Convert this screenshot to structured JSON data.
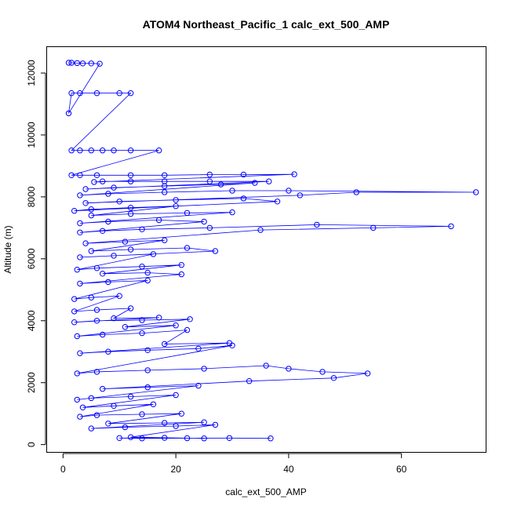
{
  "chart_data": {
    "type": "scatter",
    "title": "ATOM4 Northeast_Pacific_1 calc_ext_500_AMP",
    "xlabel": "calc_ext_500_AMP",
    "ylabel": "Altitude (m)",
    "xlim": [
      -2.9,
      75
    ],
    "ylim": [
      -250,
      12850
    ],
    "x_ticks": [
      0,
      20,
      40,
      60
    ],
    "x_tick_labels": [
      "0",
      "20",
      "40",
      "60"
    ],
    "y_ticks": [
      0,
      2000,
      4000,
      6000,
      8000,
      10000,
      12000
    ],
    "y_tick_labels": [
      "0",
      "2000",
      "4000",
      "6000",
      "8000",
      "10000",
      "12000"
    ],
    "grid": false,
    "legend": "none",
    "point_style": "open-circle-with-connecting-line",
    "color": "#0000ff",
    "series": [
      {
        "points": [
          [
            36.8,
            200
          ],
          [
            29.5,
            210
          ],
          [
            22.0,
            205
          ],
          [
            14.0,
            200
          ],
          [
            10.0,
            210
          ],
          [
            18.0,
            220
          ],
          [
            25.0,
            200
          ],
          [
            12.0,
            240
          ],
          [
            27.0,
            640
          ],
          [
            20.0,
            600
          ],
          [
            11.0,
            560
          ],
          [
            5.0,
            520
          ],
          [
            25.0,
            720
          ],
          [
            18.0,
            700
          ],
          [
            8.0,
            680
          ],
          [
            21.0,
            1000
          ],
          [
            14.0,
            980
          ],
          [
            6.0,
            950
          ],
          [
            3.0,
            900
          ],
          [
            16.0,
            1300
          ],
          [
            9.0,
            1250
          ],
          [
            3.5,
            1200
          ],
          [
            20.0,
            1600
          ],
          [
            12.0,
            1550
          ],
          [
            5.0,
            1500
          ],
          [
            2.5,
            1450
          ],
          [
            24.0,
            1900
          ],
          [
            15.0,
            1850
          ],
          [
            7.0,
            1800
          ],
          [
            33.0,
            2050
          ],
          [
            48.0,
            2150
          ],
          [
            54.0,
            2300
          ],
          [
            46.0,
            2350
          ],
          [
            40.0,
            2450
          ],
          [
            36.0,
            2550
          ],
          [
            25.0,
            2450
          ],
          [
            15.0,
            2400
          ],
          [
            6.0,
            2350
          ],
          [
            2.5,
            2300
          ],
          [
            30.0,
            3200
          ],
          [
            24.0,
            3100
          ],
          [
            15.0,
            3050
          ],
          [
            8.0,
            3000
          ],
          [
            3.0,
            2950
          ],
          [
            29.5,
            3280
          ],
          [
            18.0,
            3250
          ],
          [
            22.0,
            3700
          ],
          [
            14.0,
            3600
          ],
          [
            7.0,
            3550
          ],
          [
            2.5,
            3500
          ],
          [
            20.0,
            3850
          ],
          [
            11.0,
            3800
          ],
          [
            22.5,
            4050
          ],
          [
            14.0,
            4020
          ],
          [
            6.0,
            4000
          ],
          [
            2.0,
            3950
          ],
          [
            17.0,
            4100
          ],
          [
            9.0,
            4080
          ],
          [
            12.0,
            4400
          ],
          [
            6.0,
            4350
          ],
          [
            2.0,
            4300
          ],
          [
            10.0,
            4800
          ],
          [
            5.0,
            4750
          ],
          [
            2.0,
            4700
          ],
          [
            15.0,
            5300
          ],
          [
            8.0,
            5250
          ],
          [
            3.0,
            5200
          ],
          [
            21.0,
            5500
          ],
          [
            15.0,
            5550
          ],
          [
            7.0,
            5520
          ],
          [
            21.0,
            5800
          ],
          [
            14.0,
            5750
          ],
          [
            6.0,
            5700
          ],
          [
            2.5,
            5650
          ],
          [
            16.0,
            6150
          ],
          [
            9.0,
            6100
          ],
          [
            3.0,
            6050
          ],
          [
            27.0,
            6250
          ],
          [
            22.0,
            6350
          ],
          [
            12.0,
            6300
          ],
          [
            5.0,
            6250
          ],
          [
            18.0,
            6600
          ],
          [
            11.0,
            6550
          ],
          [
            4.0,
            6500
          ],
          [
            35.0,
            6930
          ],
          [
            55.0,
            7000
          ],
          [
            68.8,
            7050
          ],
          [
            45.0,
            7100
          ],
          [
            26.0,
            7000
          ],
          [
            14.0,
            6950
          ],
          [
            7.0,
            6900
          ],
          [
            3.0,
            6850
          ],
          [
            25.0,
            7200
          ],
          [
            17.0,
            7250
          ],
          [
            8.0,
            7200
          ],
          [
            3.0,
            7150
          ],
          [
            30.0,
            7500
          ],
          [
            22.0,
            7480
          ],
          [
            12.0,
            7450
          ],
          [
            5.0,
            7400
          ],
          [
            20.0,
            7700
          ],
          [
            12.0,
            7650
          ],
          [
            5.0,
            7600
          ],
          [
            2.0,
            7550
          ],
          [
            38.0,
            7850
          ],
          [
            32.0,
            7950
          ],
          [
            20.0,
            7900
          ],
          [
            10.0,
            7850
          ],
          [
            4.0,
            7800
          ],
          [
            42.0,
            8050
          ],
          [
            52.0,
            8150
          ],
          [
            73.2,
            8150
          ],
          [
            40.0,
            8200
          ],
          [
            30.0,
            8200
          ],
          [
            18.0,
            8150
          ],
          [
            8.0,
            8100
          ],
          [
            3.0,
            8050
          ],
          [
            34.0,
            8450
          ],
          [
            28.0,
            8400
          ],
          [
            18.0,
            8350
          ],
          [
            9.0,
            8300
          ],
          [
            4.0,
            8250
          ],
          [
            36.5,
            8500
          ],
          [
            26.0,
            8500
          ],
          [
            18.0,
            8500
          ],
          [
            12.0,
            8500
          ],
          [
            7.0,
            8500
          ],
          [
            5.5,
            8480
          ],
          [
            41.0,
            8730
          ],
          [
            32.0,
            8720
          ],
          [
            26.0,
            8720
          ],
          [
            18.0,
            8700
          ],
          [
            12.0,
            8700
          ],
          [
            6.0,
            8700
          ],
          [
            3.0,
            8700
          ],
          [
            1.5,
            8700
          ],
          [
            17.0,
            9500
          ],
          [
            12.0,
            9500
          ],
          [
            9.0,
            9500
          ],
          [
            7.0,
            9500
          ],
          [
            5.0,
            9500
          ],
          [
            3.0,
            9500
          ],
          [
            1.5,
            9500
          ],
          [
            12.0,
            11350
          ],
          [
            10.0,
            11350
          ],
          [
            6.0,
            11350
          ],
          [
            3.0,
            11350
          ],
          [
            1.5,
            11350
          ],
          [
            1.0,
            10700
          ],
          [
            6.5,
            12300
          ],
          [
            5.0,
            12310
          ],
          [
            3.5,
            12310
          ],
          [
            2.5,
            12320
          ],
          [
            1.5,
            12330
          ],
          [
            1.0,
            12330
          ]
        ]
      }
    ]
  }
}
